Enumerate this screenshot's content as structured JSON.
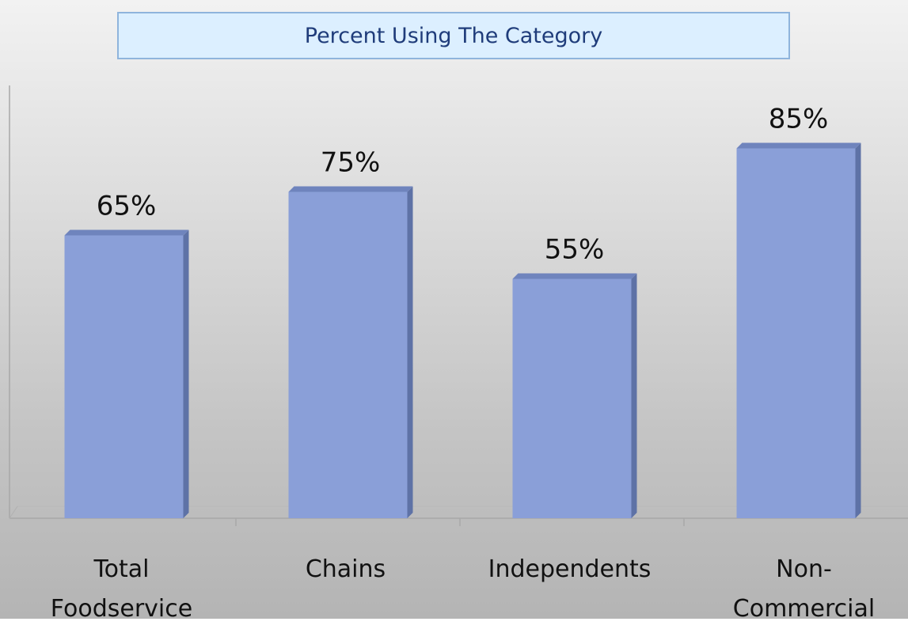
{
  "chart_data": {
    "type": "bar",
    "title": "Percent Using The Category",
    "categories": [
      "Total Foodservice",
      "Chains",
      "Independents",
      "Non-Commercial"
    ],
    "values": [
      65,
      75,
      55,
      85
    ],
    "value_labels": [
      "65%",
      "75%",
      "55%",
      "85%"
    ],
    "color": "#8a9fd8",
    "ylim": [
      0,
      100
    ]
  }
}
